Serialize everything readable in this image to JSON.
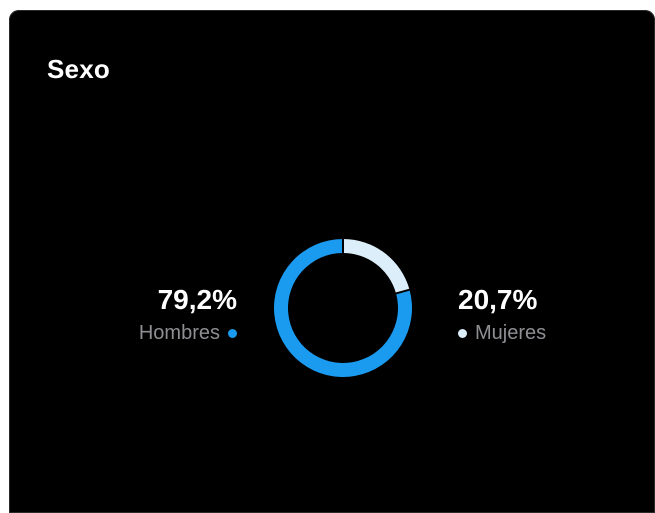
{
  "card": {
    "title": "Sexo"
  },
  "colors": {
    "male": "#1a9bf0",
    "female": "#dceefa"
  },
  "chart_data": {
    "type": "pie",
    "title": "Sexo",
    "categories": [
      "Hombres",
      "Mujeres"
    ],
    "values": [
      79.2,
      20.7
    ],
    "labels": [
      "79,2%",
      "20,7%"
    ],
    "colors": [
      "#1a9bf0",
      "#dceefa"
    ],
    "legend": "sides"
  }
}
